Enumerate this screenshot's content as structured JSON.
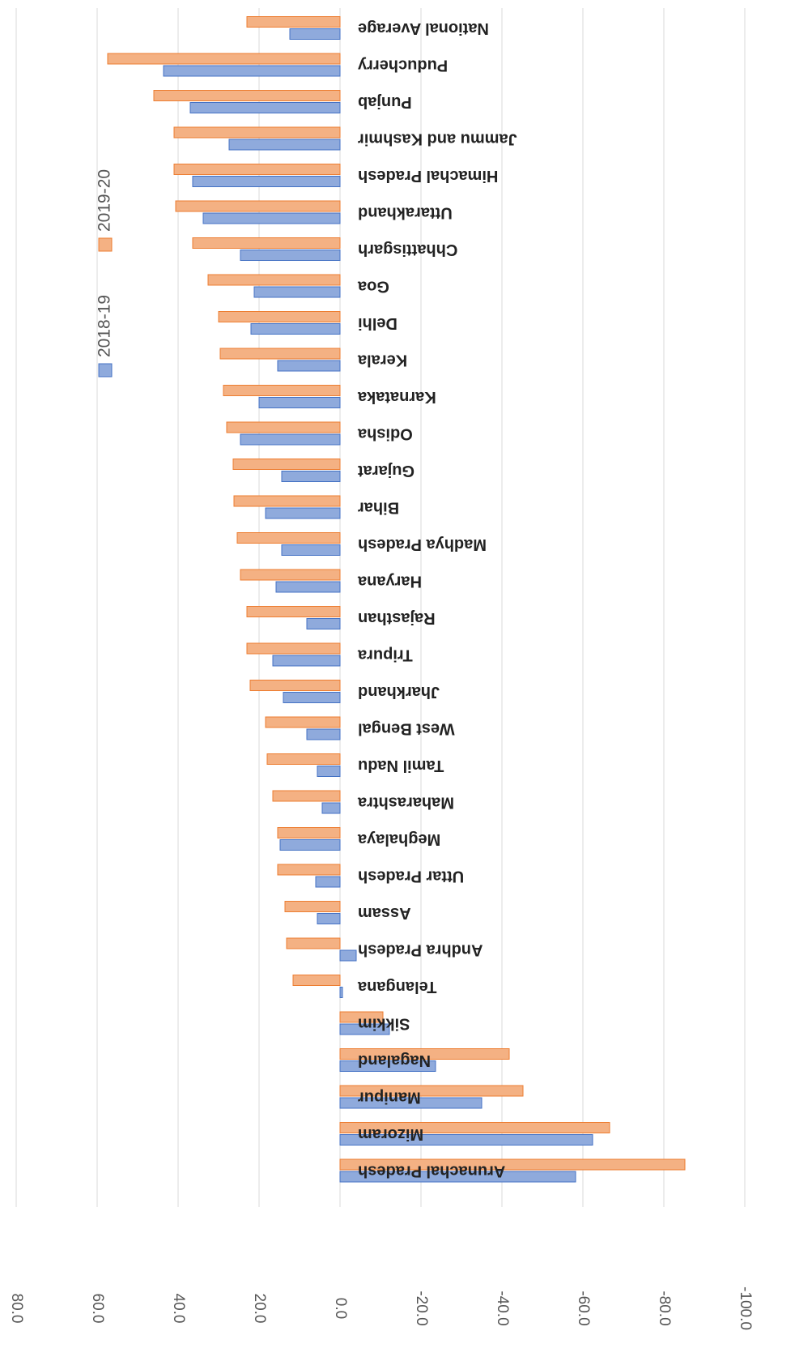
{
  "chart_data": {
    "type": "barh",
    "categories": [
      "Arunachal Pradesh",
      "Mizoram",
      "Manipur",
      "Nagaland",
      "Sikkim",
      "Telangana",
      "Andhra Pradesh",
      "Assam",
      "Uttar Pradesh",
      "Meghalaya",
      "Maharashtra",
      "Tamil Nadu",
      "West Bengal",
      "Jharkhand",
      "Tripura",
      "Rajasthan",
      "Haryana",
      "Madhya Pradesh",
      "Bihar",
      "Gujarat",
      "Odisha",
      "Karnataka",
      "Kerala",
      "Delhi",
      "Goa",
      "Chhattisgarh",
      "Uttarakhand",
      "Himachal Pradesh",
      "Jammu and Kashmir",
      "Punjab",
      "Puducherry",
      "National Average"
    ],
    "series": [
      {
        "name": "2018-19",
        "color": "#8faadc",
        "values": [
          -58.2,
          -62.4,
          -35,
          -23.6,
          -12.2,
          -0.6,
          -4,
          5.6,
          6,
          14.8,
          4.4,
          5.6,
          8.2,
          14,
          16.6,
          8.2,
          15.8,
          14.4,
          18.4,
          14.4,
          24.6,
          20,
          15.4,
          22,
          21.2,
          24.6,
          33.8,
          36.4,
          27.4,
          37,
          43.6,
          12.4
        ]
      },
      {
        "name": "2019-20",
        "color": "#f4b183",
        "values": [
          -85.2,
          -66.6,
          -45.2,
          -41.8,
          -10.6,
          11.6,
          13.2,
          13.6,
          15.4,
          15.4,
          16.6,
          18,
          18.4,
          22.2,
          23,
          23,
          24.6,
          25.4,
          26.2,
          26.4,
          28,
          28.8,
          29.6,
          30,
          32.6,
          36.4,
          40.6,
          41,
          41,
          46,
          57.4,
          23
        ]
      }
    ],
    "xlim": [
      -100,
      80
    ],
    "xticks": [
      {
        "value": -100,
        "label": "-100.0"
      },
      {
        "value": -80,
        "label": "-80.0"
      },
      {
        "value": -60,
        "label": "-60.0"
      },
      {
        "value": -40,
        "label": "-40.0"
      },
      {
        "value": -20,
        "label": "-20.0"
      },
      {
        "value": 0,
        "label": "0.0"
      },
      {
        "value": 20,
        "label": "20.0"
      },
      {
        "value": 40,
        "label": "40.0"
      },
      {
        "value": 60,
        "label": "60.0"
      },
      {
        "value": 80,
        "label": "80.0"
      }
    ],
    "grid": true,
    "rotated": 180,
    "legend": "right"
  }
}
